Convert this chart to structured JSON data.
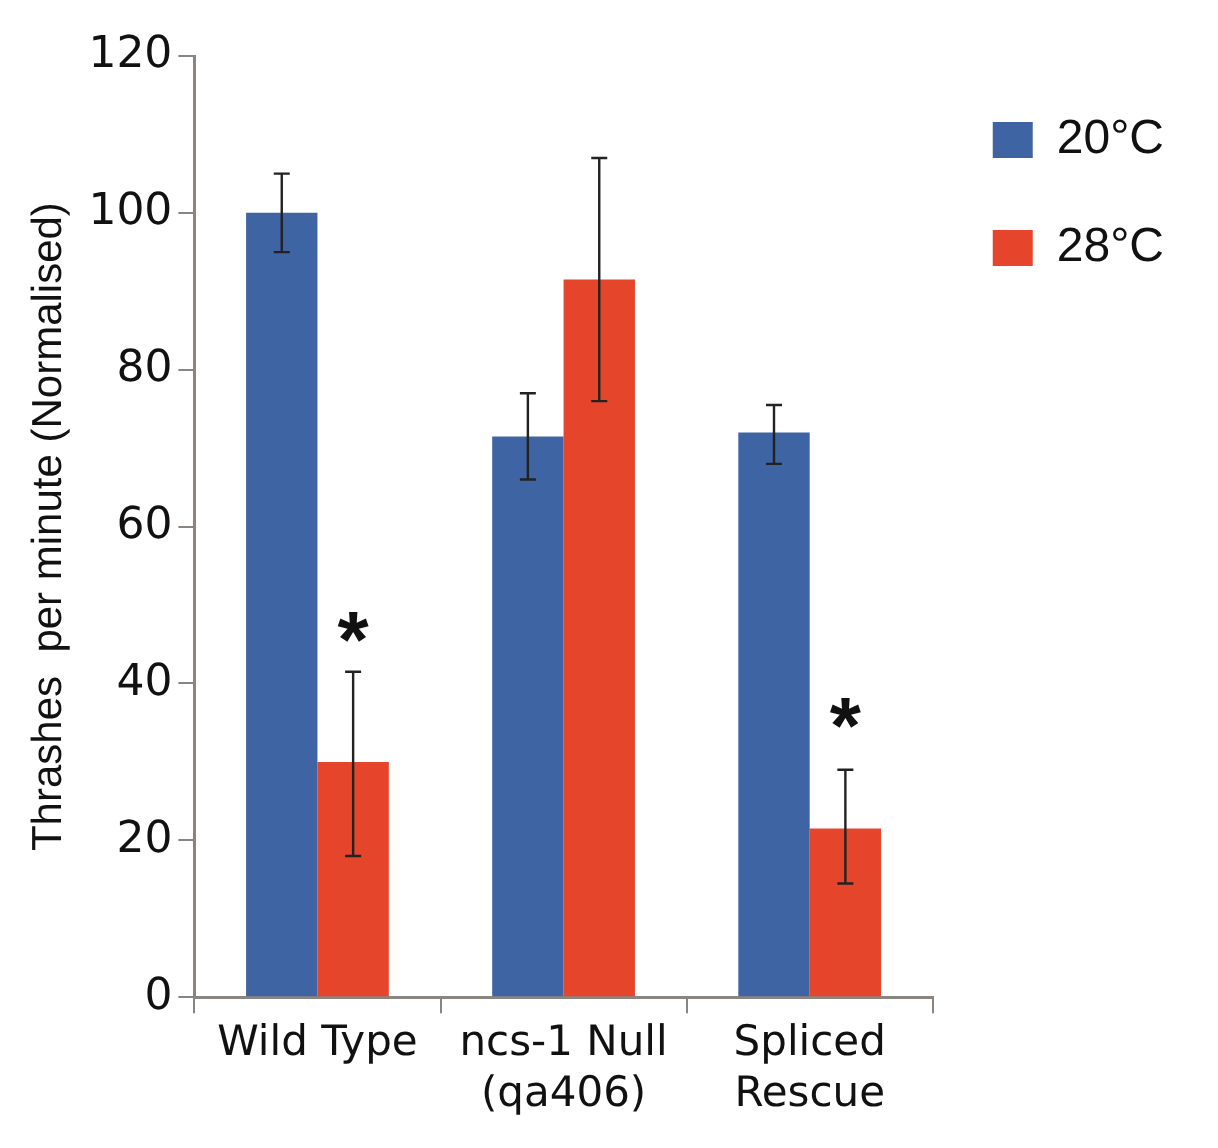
{
  "chart_data": {
    "type": "bar",
    "ylabel": "Thrashes  per minute (Normalised)",
    "categories": [
      "Wild Type",
      "ncs-1 Null\n(qa406)",
      "Spliced\nRescue"
    ],
    "series": [
      {
        "name": "20°C",
        "color": "#3e64a4",
        "values": [
          100,
          71.5,
          72
        ],
        "errors": [
          [
            95,
            105
          ],
          [
            66,
            77
          ],
          [
            68,
            75.5
          ]
        ]
      },
      {
        "name": "28°C",
        "color": "#e5452b",
        "values": [
          30,
          91.5,
          21.5
        ],
        "errors": [
          [
            18,
            41.5
          ],
          [
            76,
            107
          ],
          [
            14.5,
            29
          ]
        ]
      }
    ],
    "annotations": [
      {
        "text": "*",
        "x": "Wild Type",
        "y": 47
      },
      {
        "text": "*",
        "x": "Spliced\nRescue",
        "y": 36
      }
    ],
    "ylim": [
      0,
      120
    ],
    "yticks": [
      0,
      20,
      40,
      60,
      80,
      100,
      120
    ],
    "grid": false,
    "legend": "top right"
  }
}
